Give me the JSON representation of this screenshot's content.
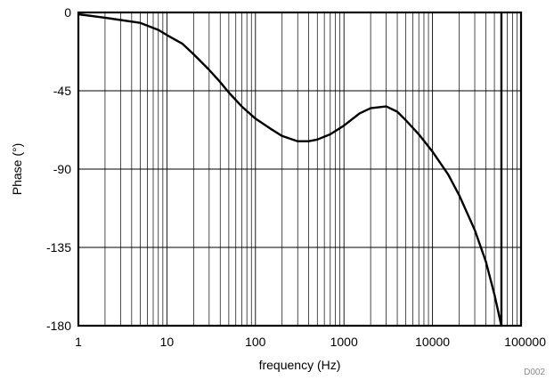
{
  "chart_data": {
    "type": "line",
    "xlabel": "frequency (Hz)",
    "ylabel": "Phase (°)",
    "x_scale": "log",
    "xlim": [
      1,
      100000
    ],
    "ylim": [
      -180,
      0
    ],
    "x_ticks": [
      1,
      10,
      100,
      1000,
      10000,
      100000
    ],
    "x_tick_labels": [
      "1",
      "10",
      "100",
      "1000",
      "10000",
      "100000"
    ],
    "y_ticks": [
      0,
      -45,
      -90,
      -135,
      -180
    ],
    "y_tick_labels": [
      "0",
      "-45",
      "-90",
      "-135",
      "-180"
    ],
    "grid": true,
    "legend": "none",
    "figure_id": "D002",
    "line_color": "#000000",
    "series": [
      {
        "x": [
          1,
          2,
          5,
          8,
          10,
          15,
          20,
          30,
          40,
          50,
          70,
          100,
          150,
          200,
          300,
          400,
          500,
          700,
          1000,
          1500,
          2000,
          3000,
          4000,
          5000,
          7000,
          10000,
          15000,
          20000,
          30000,
          40000,
          50000,
          60000
        ],
        "y": [
          -1,
          -3,
          -6,
          -10,
          -13,
          -18,
          -24,
          -33,
          -40,
          -46,
          -54,
          -61,
          -67,
          -71,
          -74,
          -74,
          -73,
          -70,
          -65,
          -58,
          -55,
          -54,
          -57,
          -62,
          -70,
          -80,
          -93,
          -105,
          -125,
          -143,
          -162,
          -180
        ]
      }
    ],
    "vertical_marker_x": 60000
  }
}
